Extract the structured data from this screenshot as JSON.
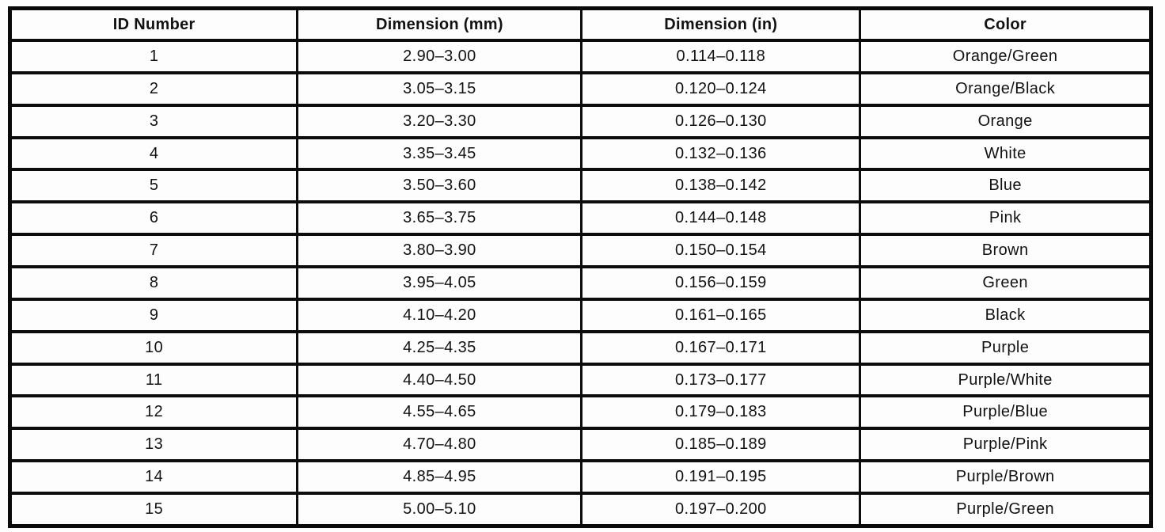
{
  "document": {
    "table": {
      "headers": [
        "ID Number",
        "Dimension (mm)",
        "Dimension (in)",
        "Color"
      ],
      "rows": [
        [
          "1",
          "2.90–3.00",
          "0.114–0.118",
          "Orange/Green"
        ],
        [
          "2",
          "3.05–3.15",
          "0.120–0.124",
          "Orange/Black"
        ],
        [
          "3",
          "3.20–3.30",
          "0.126–0.130",
          "Orange"
        ],
        [
          "4",
          "3.35–3.45",
          "0.132–0.136",
          "White"
        ],
        [
          "5",
          "3.50–3.60",
          "0.138–0.142",
          "Blue"
        ],
        [
          "6",
          "3.65–3.75",
          "0.144–0.148",
          "Pink"
        ],
        [
          "7",
          "3.80–3.90",
          "0.150–0.154",
          "Brown"
        ],
        [
          "8",
          "3.95–4.05",
          "0.156–0.159",
          "Green"
        ],
        [
          "9",
          "4.10–4.20",
          "0.161–0.165",
          "Black"
        ],
        [
          "10",
          "4.25–4.35",
          "0.167–0.171",
          "Purple"
        ],
        [
          "11",
          "4.40–4.50",
          "0.173–0.177",
          "Purple/White"
        ],
        [
          "12",
          "4.55–4.65",
          "0.179–0.183",
          "Purple/Blue"
        ],
        [
          "13",
          "4.70–4.80",
          "0.185–0.189",
          "Purple/Pink"
        ],
        [
          "14",
          "4.85–4.95",
          "0.191–0.195",
          "Purple/Brown"
        ],
        [
          "15",
          "5.00–5.10",
          "0.197–0.200",
          "Purple/Green"
        ]
      ]
    }
  }
}
